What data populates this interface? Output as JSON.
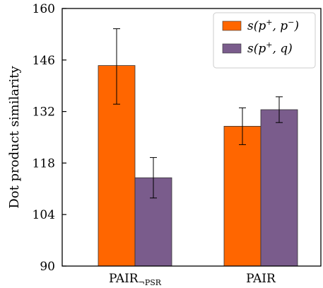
{
  "chart_data": {
    "type": "bar",
    "title": "",
    "xlabel": "",
    "ylabel": "Dot product similarity",
    "ylim": [
      90,
      160
    ],
    "yticks": [
      "90",
      "104",
      "118",
      "132",
      "146",
      "160"
    ],
    "categories": [
      {
        "label": "PAIR",
        "subscript": "¬PSR"
      },
      {
        "label": "PAIR",
        "subscript": ""
      }
    ],
    "series": [
      {
        "legend": {
          "base": "s(p",
          "sup": "+",
          "mid": ", p",
          "sup2": "−",
          "end": ")"
        },
        "color": "#ff6600",
        "values": [
          144.5,
          128
        ],
        "error_low": [
          134,
          123
        ],
        "error_high": [
          154.5,
          133
        ]
      },
      {
        "legend": {
          "base": "s(p",
          "sup": "+",
          "mid": ", q",
          "sup2": "",
          "end": ")"
        },
        "color": "#7a5c8c",
        "values": [
          114,
          132.5
        ],
        "error_low": [
          108.5,
          129
        ],
        "error_high": [
          119.5,
          136
        ]
      }
    ],
    "grid": false,
    "legend_position": "top-right"
  }
}
